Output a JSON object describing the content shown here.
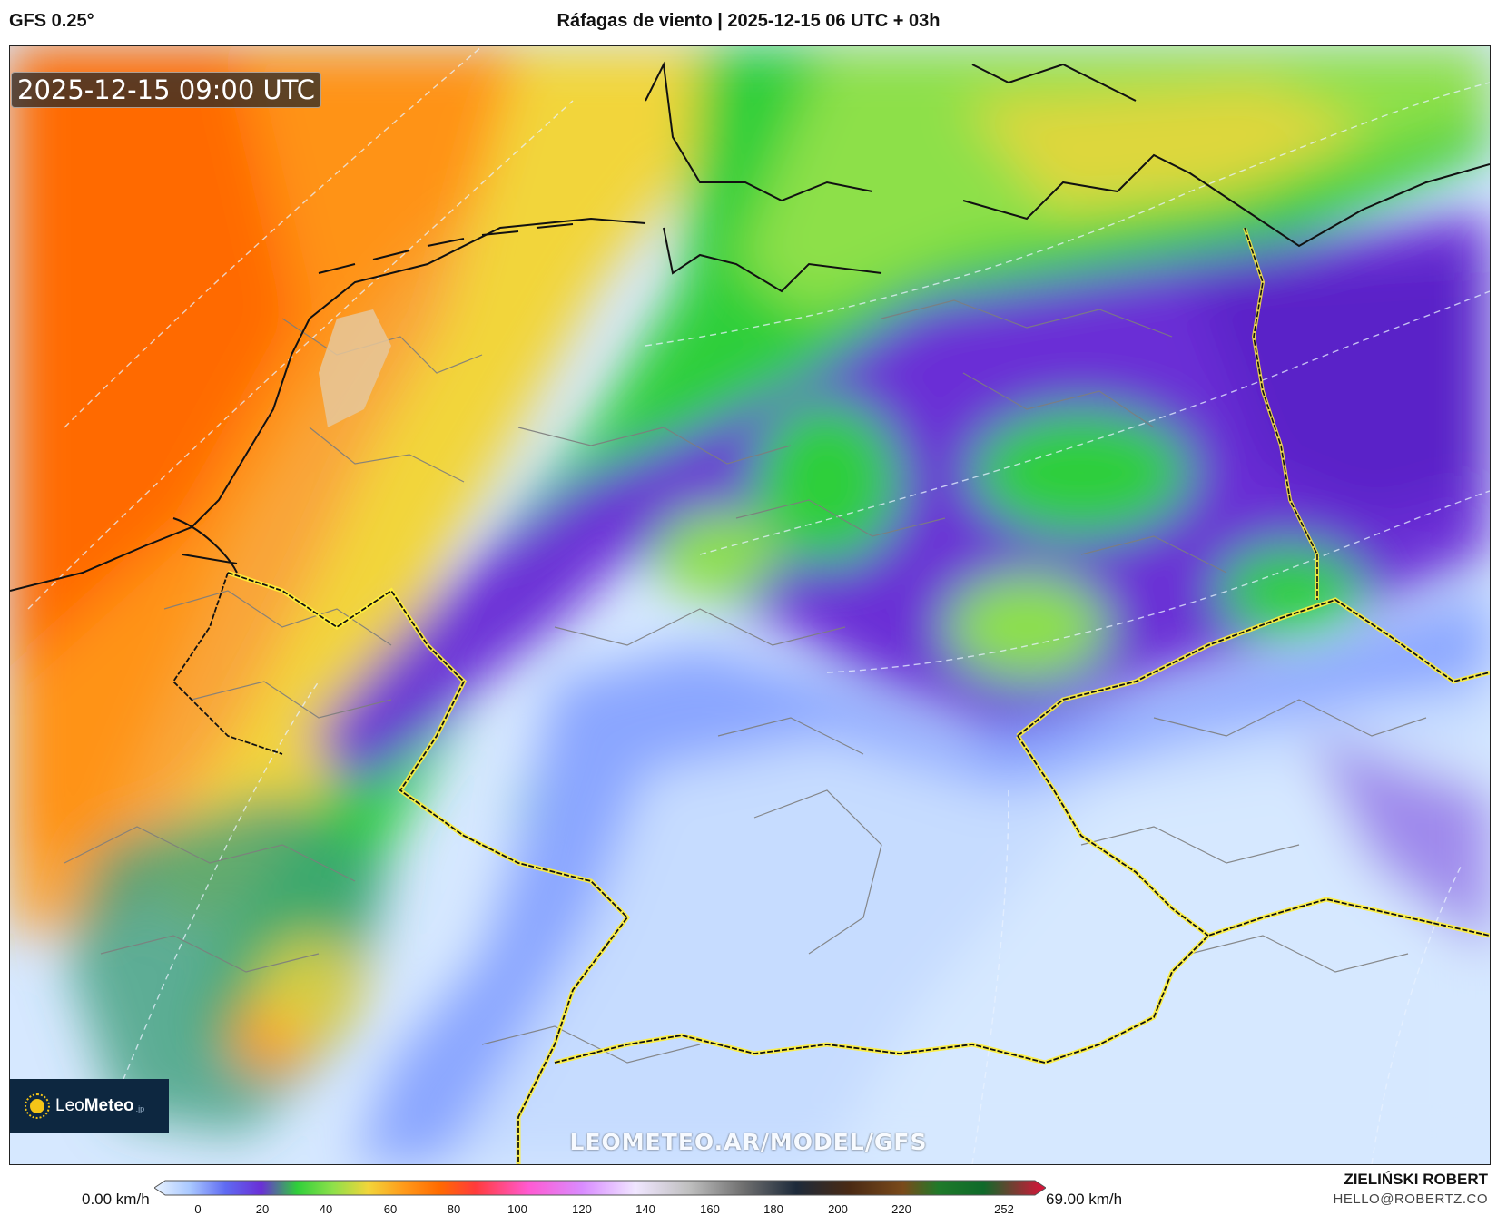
{
  "header": {
    "model": "GFS 0.25°",
    "title": "Ráfagas de viento | 2025-12-15 06 UTC + 03h"
  },
  "map": {
    "valid_time": "2025-12-15 09:00 UTC",
    "watermark": "LEOMETEO.AR/MODEL/GFS",
    "logo": {
      "brand_light": "Leo",
      "brand_bold": "Meteo",
      "tld": ".jp"
    },
    "palette": {
      "very_strong": "#ff6a00",
      "strong": "#ff9a1a",
      "moderate_high": "#f2d53a",
      "moderate": "#8de04a",
      "medium": "#2fcf3a",
      "medium_low": "#3f9f7a",
      "low": "#6a2fd6",
      "very_low": "#8aa6ff",
      "calm": "#d6e8ff"
    }
  },
  "legend": {
    "min_label": "0.00 km/h",
    "max_label": "69.00 km/h",
    "ticks": [
      "0",
      "20",
      "40",
      "60",
      "80",
      "100",
      "120",
      "140",
      "160",
      "180",
      "200",
      "220",
      "252"
    ]
  },
  "credits": {
    "author": "ZIELIŃSKI ROBERT",
    "email": "HELLO@ROBERTZ.CO"
  }
}
